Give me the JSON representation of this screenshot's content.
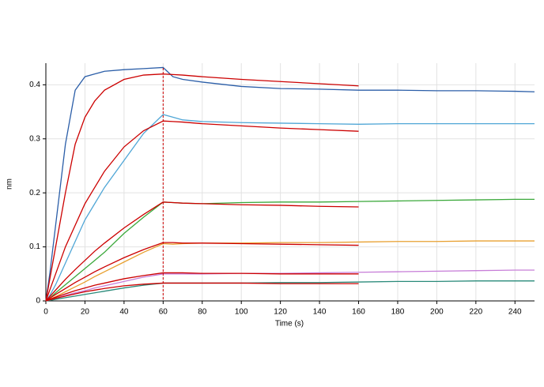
{
  "chart_data": {
    "type": "line",
    "xlabel": "Time (s)",
    "ylabel": "nm",
    "x": [
      0,
      2,
      5,
      10,
      15,
      20,
      25,
      30,
      40,
      50,
      60,
      65,
      70,
      80,
      100,
      120,
      140,
      160,
      180,
      200,
      220,
      240,
      250
    ],
    "xlim": [
      0,
      250
    ],
    "ylim": [
      0,
      0.44
    ],
    "xticks": [
      0,
      20,
      40,
      60,
      80,
      100,
      120,
      140,
      160,
      180,
      200,
      220,
      240
    ],
    "yticks": [
      0,
      0.1,
      0.2,
      0.3,
      0.4
    ],
    "grid": true,
    "vline": 60,
    "series": [
      {
        "color": "#2b5ea8",
        "values": [
          0,
          0.05,
          0.14,
          0.29,
          0.39,
          0.415,
          0.42,
          0.425,
          0.428,
          0.43,
          0.432,
          0.415,
          0.41,
          0.405,
          0.397,
          0.393,
          0.392,
          0.39,
          0.39,
          0.389,
          0.389,
          0.388,
          0.387
        ]
      },
      {
        "color": "#cc0000",
        "values": [
          0,
          0.04,
          0.1,
          0.2,
          0.29,
          0.34,
          0.37,
          0.39,
          0.41,
          0.418,
          0.42,
          0.419,
          0.418,
          0.415,
          0.41,
          0.406,
          0.402,
          0.398,
          null,
          null,
          null,
          null,
          null
        ]
      },
      {
        "color": "#4fa6d6",
        "values": [
          0,
          0.01,
          0.03,
          0.07,
          0.11,
          0.15,
          0.18,
          0.21,
          0.26,
          0.31,
          0.345,
          0.34,
          0.335,
          0.332,
          0.33,
          0.329,
          0.328,
          0.327,
          0.328,
          0.328,
          0.328,
          0.328,
          0.328
        ]
      },
      {
        "color": "#cc0000",
        "values": [
          0,
          0.02,
          0.05,
          0.1,
          0.14,
          0.18,
          0.21,
          0.24,
          0.285,
          0.315,
          0.333,
          0.332,
          0.331,
          0.328,
          0.324,
          0.32,
          0.317,
          0.314,
          null,
          null,
          null,
          null,
          null
        ]
      },
      {
        "color": "#3aa83a",
        "values": [
          0,
          0.005,
          0.015,
          0.03,
          0.045,
          0.06,
          0.075,
          0.09,
          0.125,
          0.155,
          0.183,
          0.182,
          0.181,
          0.18,
          0.182,
          0.183,
          0.183,
          0.184,
          0.185,
          0.186,
          0.187,
          0.188,
          0.188
        ]
      },
      {
        "color": "#cc0000",
        "values": [
          0,
          0.008,
          0.02,
          0.04,
          0.058,
          0.075,
          0.092,
          0.107,
          0.135,
          0.16,
          0.183,
          0.182,
          0.181,
          0.18,
          0.178,
          0.177,
          0.175,
          0.174,
          null,
          null,
          null,
          null,
          null
        ]
      },
      {
        "color": "#e8a030",
        "values": [
          0,
          0.003,
          0.008,
          0.017,
          0.026,
          0.035,
          0.045,
          0.054,
          0.072,
          0.09,
          0.106,
          0.105,
          0.106,
          0.107,
          0.107,
          0.108,
          0.108,
          0.109,
          0.11,
          0.11,
          0.111,
          0.111,
          0.111
        ]
      },
      {
        "color": "#cc0000",
        "values": [
          0,
          0.005,
          0.012,
          0.023,
          0.034,
          0.044,
          0.054,
          0.063,
          0.08,
          0.095,
          0.108,
          0.108,
          0.107,
          0.107,
          0.106,
          0.105,
          0.104,
          0.103,
          null,
          null,
          null,
          null,
          null
        ]
      },
      {
        "color": "#c77ed8",
        "values": [
          0,
          0.002,
          0.005,
          0.01,
          0.015,
          0.019,
          0.024,
          0.028,
          0.036,
          0.044,
          0.05,
          0.05,
          0.05,
          0.05,
          0.051,
          0.051,
          0.052,
          0.053,
          0.054,
          0.055,
          0.056,
          0.057,
          0.057
        ]
      },
      {
        "color": "#cc0000",
        "values": [
          0,
          0.003,
          0.007,
          0.013,
          0.019,
          0.024,
          0.029,
          0.033,
          0.041,
          0.047,
          0.052,
          0.052,
          0.052,
          0.051,
          0.051,
          0.05,
          0.05,
          0.05,
          null,
          null,
          null,
          null,
          null
        ]
      },
      {
        "color": "#2a8a7a",
        "values": [
          0,
          0.001,
          0.003,
          0.006,
          0.009,
          0.012,
          0.015,
          0.018,
          0.024,
          0.029,
          0.033,
          0.033,
          0.033,
          0.033,
          0.033,
          0.034,
          0.034,
          0.035,
          0.036,
          0.036,
          0.037,
          0.037,
          0.037
        ]
      },
      {
        "color": "#cc0000",
        "values": [
          0,
          0.002,
          0.005,
          0.009,
          0.013,
          0.017,
          0.02,
          0.023,
          0.028,
          0.031,
          0.033,
          0.033,
          0.033,
          0.033,
          0.033,
          0.032,
          0.032,
          0.032,
          null,
          null,
          null,
          null,
          null
        ]
      }
    ]
  }
}
